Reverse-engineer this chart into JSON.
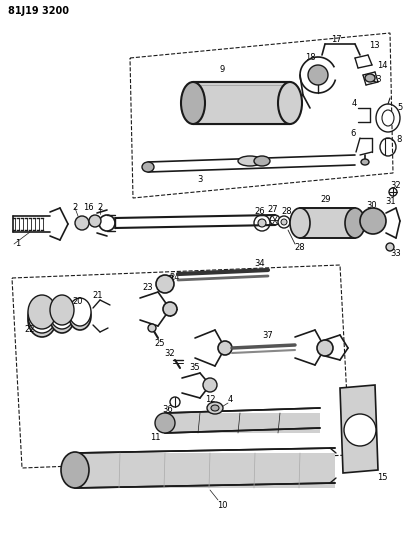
{
  "title": "81J19 3200",
  "bg_color": "#ffffff",
  "line_color": "#1a1a1a",
  "fig_width": 4.03,
  "fig_height": 5.33,
  "dpi": 100,
  "gray_light": "#d0d0d0",
  "gray_med": "#b0b0b0",
  "gray_dark": "#888888"
}
